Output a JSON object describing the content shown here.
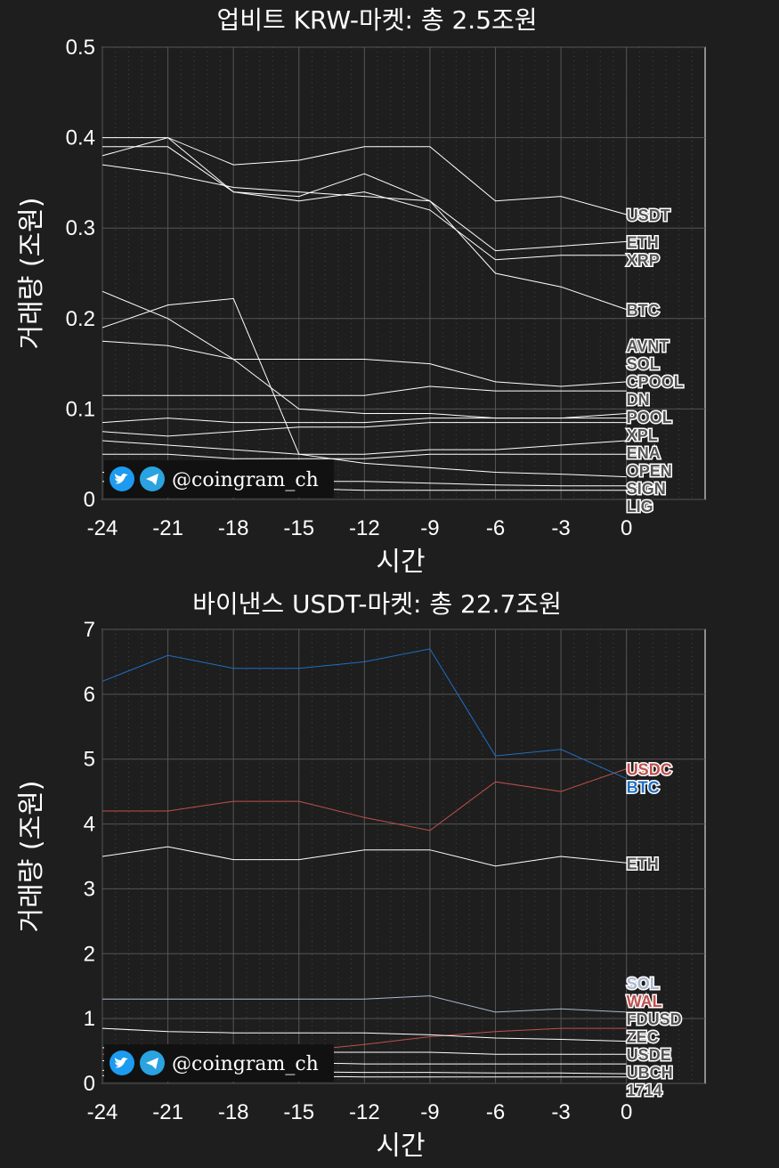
{
  "watermark": "@coingram_ch",
  "chart_data": [
    {
      "type": "line",
      "title": "업비트 KRW-마켓: 총 2.5조원",
      "xlabel": "시간",
      "ylabel": "거래량 (조원)",
      "xlim": [
        -24,
        3.6
      ],
      "ylim": [
        0,
        0.5
      ],
      "xticks": [
        -24,
        -21,
        -18,
        -15,
        -12,
        -9,
        -6,
        -3,
        0
      ],
      "xtick_labels": [
        "-24",
        "-21",
        "-18",
        "-15",
        "-12",
        "-9",
        "-6",
        "-3",
        "0"
      ],
      "yticks": [
        0,
        0.1,
        0.2,
        0.3,
        0.4,
        0.5
      ],
      "ytick_labels": [
        "0",
        "0.1",
        "0.2",
        "0.3",
        "0.4",
        "0.5"
      ],
      "grid": true,
      "x": [
        -24,
        -21,
        -18,
        -15,
        -12,
        -9,
        -6,
        -3,
        0
      ],
      "series": [
        {
          "name": "USDT",
          "color": "#ffffff",
          "values": [
            0.38,
            0.4,
            0.37,
            0.375,
            0.39,
            0.39,
            0.33,
            0.335,
            0.315
          ]
        },
        {
          "name": "ETH",
          "color": "#ffffff",
          "values": [
            0.39,
            0.39,
            0.34,
            0.335,
            0.36,
            0.33,
            0.275,
            0.28,
            0.285
          ]
        },
        {
          "name": "XRP",
          "color": "#ffffff",
          "values": [
            0.4,
            0.4,
            0.34,
            0.33,
            0.34,
            0.32,
            0.265,
            0.27,
            0.27
          ]
        },
        {
          "name": "BTC",
          "color": "#ffffff",
          "values": [
            0.37,
            0.36,
            0.345,
            0.34,
            0.335,
            0.33,
            0.25,
            0.235,
            0.21
          ]
        },
        {
          "name": "AVNT",
          "color": "#ffffff",
          "values": [
            0.175,
            0.17,
            0.155,
            0.155,
            0.155,
            0.15,
            0.13,
            0.125,
            0.13
          ]
        },
        {
          "name": "SOL",
          "color": "#ffffff",
          "values": [
            0.115,
            0.115,
            0.115,
            0.115,
            0.115,
            0.125,
            0.12,
            0.12,
            0.12
          ]
        },
        {
          "name": "CPOOL",
          "color": "#ffffff",
          "values": [
            0.23,
            0.2,
            0.155,
            0.1,
            0.095,
            0.095,
            0.09,
            0.09,
            0.095
          ]
        },
        {
          "name": "DN",
          "color": "#ffffff",
          "values": [
            0.085,
            0.09,
            0.085,
            0.085,
            0.085,
            0.09,
            0.09,
            0.09,
            0.09
          ]
        },
        {
          "name": "POOL",
          "color": "#ffffff",
          "values": [
            0.075,
            0.07,
            0.075,
            0.08,
            0.08,
            0.085,
            0.085,
            0.085,
            0.085
          ]
        },
        {
          "name": "XPL",
          "color": "#ffffff",
          "values": [
            0.065,
            0.06,
            0.055,
            0.05,
            0.05,
            0.055,
            0.055,
            0.06,
            0.065
          ]
        },
        {
          "name": "ENA",
          "color": "#ffffff",
          "values": [
            0.05,
            0.05,
            0.045,
            0.045,
            0.045,
            0.05,
            0.05,
            0.05,
            0.05
          ]
        },
        {
          "name": "OPEN",
          "color": "#ffffff",
          "values": [
            0.19,
            0.215,
            0.222,
            0.05,
            0.04,
            0.035,
            0.03,
            0.028,
            0.025
          ]
        },
        {
          "name": "SIGN",
          "color": "#ffffff",
          "values": [
            0.03,
            0.025,
            0.02,
            0.02,
            0.02,
            0.018,
            0.016,
            0.015,
            0.015
          ]
        },
        {
          "name": "LIG",
          "color": "#ffffff",
          "values": [
            0.02,
            0.015,
            0.012,
            0.012,
            0.01,
            0.01,
            0.01,
            0.01,
            0.01
          ]
        }
      ]
    },
    {
      "type": "line",
      "title": "바이낸스 USDT-마켓: 총 22.7조원",
      "xlabel": "시간",
      "ylabel": "거래량 (조원)",
      "xlim": [
        -24,
        3.6
      ],
      "ylim": [
        0,
        7
      ],
      "xticks": [
        -24,
        -21,
        -18,
        -15,
        -12,
        -9,
        -6,
        -3,
        0
      ],
      "xtick_labels": [
        "-24",
        "-21",
        "-18",
        "-15",
        "-12",
        "-9",
        "-6",
        "-3",
        "0"
      ],
      "yticks": [
        0,
        1,
        2,
        3,
        4,
        5,
        6,
        7
      ],
      "ytick_labels": [
        "0",
        "1",
        "2",
        "3",
        "4",
        "5",
        "6",
        "7"
      ],
      "grid": true,
      "x": [
        -24,
        -21,
        -18,
        -15,
        -12,
        -9,
        -6,
        -3,
        0
      ],
      "series": [
        {
          "name": "USDC",
          "color": "#c0504d",
          "values": [
            4.2,
            4.2,
            4.35,
            4.35,
            4.1,
            3.9,
            4.65,
            4.5,
            4.85
          ]
        },
        {
          "name": "BTC",
          "color": "#1f6fc5",
          "values": [
            6.2,
            6.6,
            6.4,
            6.4,
            6.5,
            6.7,
            5.05,
            5.15,
            4.7
          ]
        },
        {
          "name": "ETH",
          "color": "#ffffff",
          "values": [
            3.5,
            3.65,
            3.45,
            3.45,
            3.6,
            3.6,
            3.35,
            3.5,
            3.4
          ]
        },
        {
          "name": "SOL",
          "color": "#aab8d0",
          "values": [
            1.3,
            1.3,
            1.3,
            1.3,
            1.3,
            1.35,
            1.1,
            1.15,
            1.1
          ]
        },
        {
          "name": "WAL",
          "color": "#c0504d",
          "values": [
            0.45,
            0.45,
            0.45,
            0.5,
            0.6,
            0.72,
            0.8,
            0.85,
            0.85
          ]
        },
        {
          "name": "FDUSD",
          "color": "#ffffff",
          "values": [
            0.85,
            0.8,
            0.78,
            0.78,
            0.78,
            0.75,
            0.7,
            0.68,
            0.65
          ]
        },
        {
          "name": "ZEC",
          "color": "#ffffff",
          "values": [
            0.55,
            0.5,
            0.5,
            0.48,
            0.48,
            0.48,
            0.45,
            0.45,
            0.45
          ]
        },
        {
          "name": "USDE",
          "color": "#ffffff",
          "values": [
            0.35,
            0.35,
            0.32,
            0.32,
            0.3,
            0.3,
            0.3,
            0.3,
            0.3
          ]
        },
        {
          "name": "UBCH",
          "color": "#ffffff",
          "values": [
            0.2,
            0.2,
            0.18,
            0.18,
            0.17,
            0.17,
            0.16,
            0.16,
            0.15
          ]
        },
        {
          "name": "1714",
          "color": "#ffffff",
          "values": [
            0.12,
            0.12,
            0.11,
            0.11,
            0.1,
            0.1,
            0.1,
            0.1,
            0.1
          ]
        }
      ]
    }
  ]
}
